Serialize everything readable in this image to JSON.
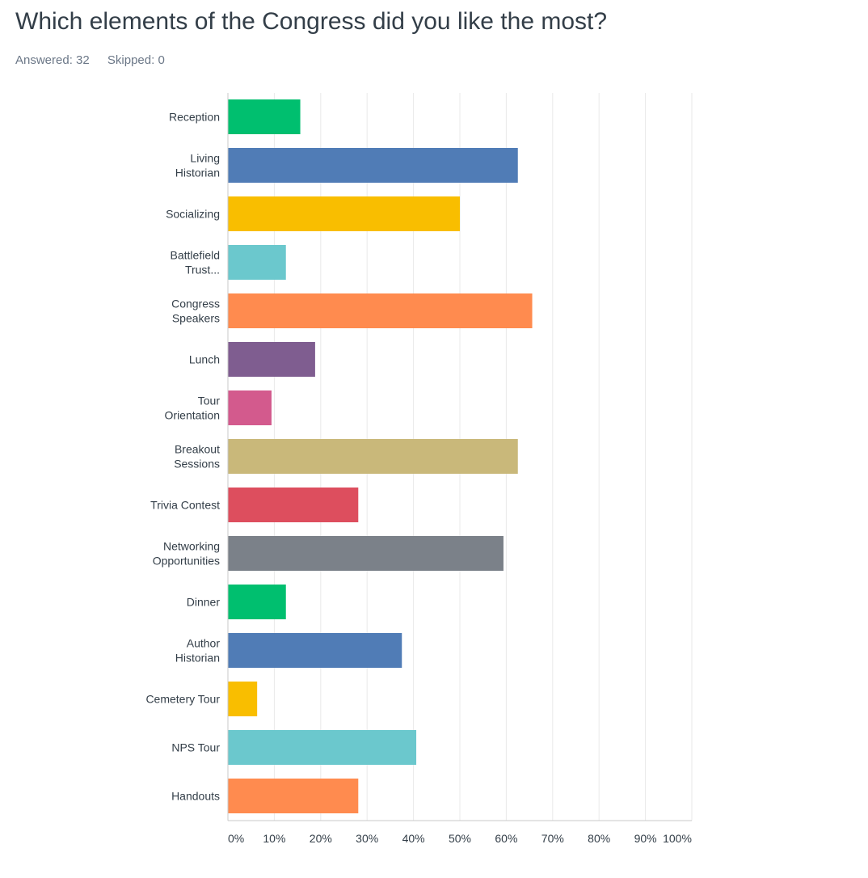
{
  "question": {
    "title": "Which elements of the Congress did you like the most?",
    "answered_label": "Answered: 32",
    "skipped_label": "Skipped: 0"
  },
  "chart_data": {
    "type": "bar",
    "orientation": "horizontal",
    "categories": [
      [
        "Reception"
      ],
      [
        "Living",
        "Historian"
      ],
      [
        "Socializing"
      ],
      [
        "Battlefield",
        "Trust..."
      ],
      [
        "Congress",
        "Speakers"
      ],
      [
        "Lunch"
      ],
      [
        "Tour",
        "Orientation"
      ],
      [
        "Breakout",
        "Sessions"
      ],
      [
        "Trivia Contest"
      ],
      [
        "Networking",
        "Opportunities"
      ],
      [
        "Dinner"
      ],
      [
        "Author",
        "Historian"
      ],
      [
        "Cemetery Tour"
      ],
      [
        "NPS Tour"
      ],
      [
        "Handouts"
      ]
    ],
    "values": [
      15.6,
      62.5,
      50.0,
      12.5,
      65.6,
      18.8,
      9.4,
      62.5,
      28.1,
      59.4,
      12.5,
      37.5,
      6.3,
      40.6,
      28.1
    ],
    "colors": [
      "#00bf6f",
      "#507cb6",
      "#f9be00",
      "#6bc8cd",
      "#ff8b4f",
      "#7f5d90",
      "#d35a8d",
      "#c9b87a",
      "#dd4e5e",
      "#7b8189",
      "#00bf6f",
      "#507cb6",
      "#f9be00",
      "#6bc8cd",
      "#ff8b4f"
    ],
    "xlim": [
      0,
      100
    ],
    "x_ticks": [
      "0%",
      "10%",
      "20%",
      "30%",
      "40%",
      "50%",
      "60%",
      "70%",
      "80%",
      "90%",
      "100%"
    ],
    "grid": true,
    "gridline_color": "#e9e9e9",
    "axis_color": "#c8c8c8",
    "legend": "none"
  }
}
